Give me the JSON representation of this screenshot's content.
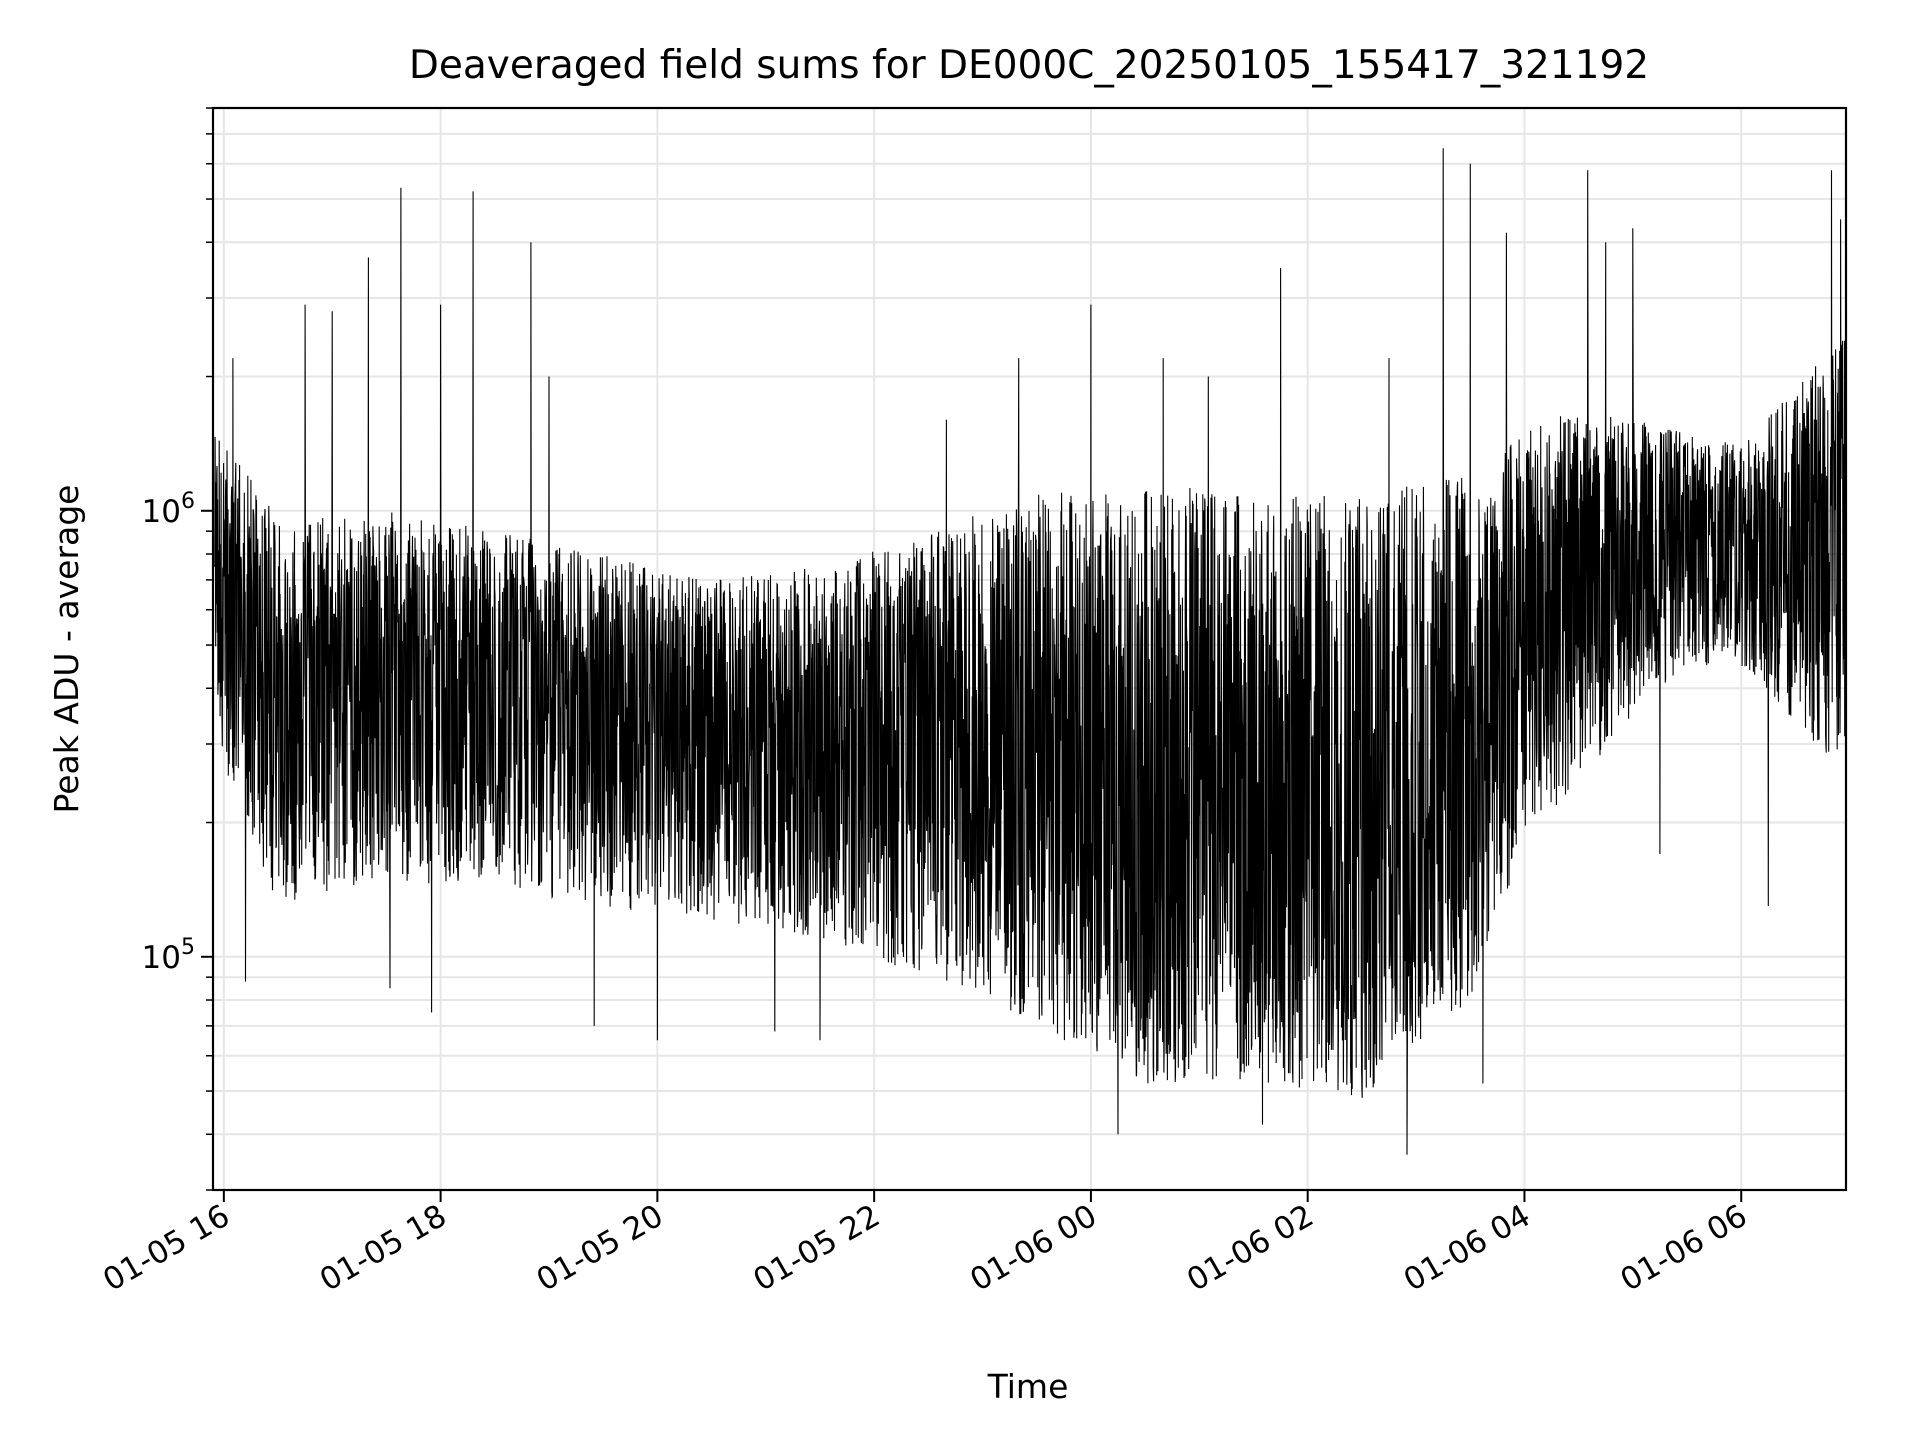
{
  "chart_data": {
    "type": "line",
    "title": "Deaveraged field sums for DE000C_20250105_155417_321192",
    "xlabel": "Time",
    "ylabel": "Peak ADU - average",
    "yscale": "log",
    "grid": true,
    "line_color": "#000000",
    "grid_color": "#e6e6e6",
    "x_range": [
      "2025-01-05 15:54",
      "2025-01-06 06:58"
    ],
    "ylim": [
      30000,
      8000000
    ],
    "x_ticks": [
      {
        "t": "2025-01-05 16:00",
        "label": "01-05 16"
      },
      {
        "t": "2025-01-05 18:00",
        "label": "01-05 18"
      },
      {
        "t": "2025-01-05 20:00",
        "label": "01-05 20"
      },
      {
        "t": "2025-01-05 22:00",
        "label": "01-05 22"
      },
      {
        "t": "2025-01-06 00:00",
        "label": "01-06 00"
      },
      {
        "t": "2025-01-06 02:00",
        "label": "01-06 02"
      },
      {
        "t": "2025-01-06 04:00",
        "label": "01-06 04"
      },
      {
        "t": "2025-01-06 06:00",
        "label": "01-06 06"
      }
    ],
    "y_ticks": [
      {
        "value": 100000,
        "base": "10",
        "exp": "5"
      },
      {
        "value": 1000000,
        "base": "10",
        "exp": "6"
      }
    ],
    "series": [
      {
        "envelope": [
          {
            "t": "2025-01-05 15:55",
            "low": 300000,
            "high": 1500000,
            "typ": 700000
          },
          {
            "t": "2025-01-05 16:30",
            "low": 130000,
            "high": 1000000,
            "typ": 420000
          },
          {
            "t": "2025-01-05 17:30",
            "low": 150000,
            "high": 1000000,
            "typ": 450000
          },
          {
            "t": "2025-01-05 18:30",
            "low": 140000,
            "high": 900000,
            "typ": 420000
          },
          {
            "t": "2025-01-05 19:30",
            "low": 130000,
            "high": 800000,
            "typ": 360000
          },
          {
            "t": "2025-01-05 20:30",
            "low": 120000,
            "high": 700000,
            "typ": 320000
          },
          {
            "t": "2025-01-05 21:30",
            "low": 110000,
            "high": 750000,
            "typ": 300000
          },
          {
            "t": "2025-01-05 22:30",
            "low": 90000,
            "high": 900000,
            "typ": 290000
          },
          {
            "t": "2025-01-05 23:30",
            "low": 70000,
            "high": 1100000,
            "typ": 260000
          },
          {
            "t": "2025-01-06 00:30",
            "low": 52000,
            "high": 1150000,
            "typ": 230000
          },
          {
            "t": "2025-01-06 01:30",
            "low": 52000,
            "high": 1100000,
            "typ": 220000
          },
          {
            "t": "2025-01-06 02:30",
            "low": 48000,
            "high": 1100000,
            "typ": 210000
          },
          {
            "t": "2025-01-06 03:30",
            "low": 80000,
            "high": 1200000,
            "typ": 280000
          },
          {
            "t": "2025-01-06 04:00",
            "low": 180000,
            "high": 1500000,
            "typ": 550000
          },
          {
            "t": "2025-01-06 04:30",
            "low": 250000,
            "high": 1700000,
            "typ": 700000
          },
          {
            "t": "2025-01-06 05:30",
            "low": 450000,
            "high": 1500000,
            "typ": 850000
          },
          {
            "t": "2025-01-06 06:00",
            "low": 450000,
            "high": 1400000,
            "typ": 800000
          },
          {
            "t": "2025-01-06 06:58",
            "low": 250000,
            "high": 2500000,
            "typ": 900000
          }
        ],
        "spikes": [
          {
            "t": "2025-01-05 16:05",
            "value": 2200000
          },
          {
            "t": "2025-01-05 16:12",
            "value": 88000
          },
          {
            "t": "2025-01-05 16:45",
            "value": 2900000
          },
          {
            "t": "2025-01-05 17:00",
            "value": 2800000
          },
          {
            "t": "2025-01-05 17:20",
            "value": 3700000
          },
          {
            "t": "2025-01-05 17:32",
            "value": 85000
          },
          {
            "t": "2025-01-05 17:38",
            "value": 5300000
          },
          {
            "t": "2025-01-05 17:55",
            "value": 75000
          },
          {
            "t": "2025-01-05 18:00",
            "value": 2900000
          },
          {
            "t": "2025-01-05 18:18",
            "value": 5200000
          },
          {
            "t": "2025-01-05 18:50",
            "value": 4000000
          },
          {
            "t": "2025-01-05 19:00",
            "value": 2000000
          },
          {
            "t": "2025-01-05 19:25",
            "value": 70000
          },
          {
            "t": "2025-01-05 20:00",
            "value": 65000
          },
          {
            "t": "2025-01-05 21:05",
            "value": 68000
          },
          {
            "t": "2025-01-05 21:30",
            "value": 65000
          },
          {
            "t": "2025-01-05 22:40",
            "value": 1600000
          },
          {
            "t": "2025-01-05 23:20",
            "value": 2200000
          },
          {
            "t": "2025-01-06 00:00",
            "value": 2900000
          },
          {
            "t": "2025-01-06 00:15",
            "value": 40000
          },
          {
            "t": "2025-01-06 00:40",
            "value": 2200000
          },
          {
            "t": "2025-01-06 01:05",
            "value": 2000000
          },
          {
            "t": "2025-01-06 01:35",
            "value": 42000
          },
          {
            "t": "2025-01-06 01:45",
            "value": 3500000
          },
          {
            "t": "2025-01-06 02:45",
            "value": 2200000
          },
          {
            "t": "2025-01-06 02:55",
            "value": 36000
          },
          {
            "t": "2025-01-06 03:15",
            "value": 6500000
          },
          {
            "t": "2025-01-06 03:30",
            "value": 6000000
          },
          {
            "t": "2025-01-06 03:37",
            "value": 52000
          },
          {
            "t": "2025-01-06 03:50",
            "value": 4200000
          },
          {
            "t": "2025-01-06 04:35",
            "value": 5800000
          },
          {
            "t": "2025-01-06 04:45",
            "value": 4000000
          },
          {
            "t": "2025-01-06 05:00",
            "value": 4300000
          },
          {
            "t": "2025-01-06 05:15",
            "value": 170000
          },
          {
            "t": "2025-01-06 06:15",
            "value": 130000
          },
          {
            "t": "2025-01-06 06:50",
            "value": 5800000
          },
          {
            "t": "2025-01-06 06:55",
            "value": 4500000
          }
        ]
      }
    ]
  }
}
